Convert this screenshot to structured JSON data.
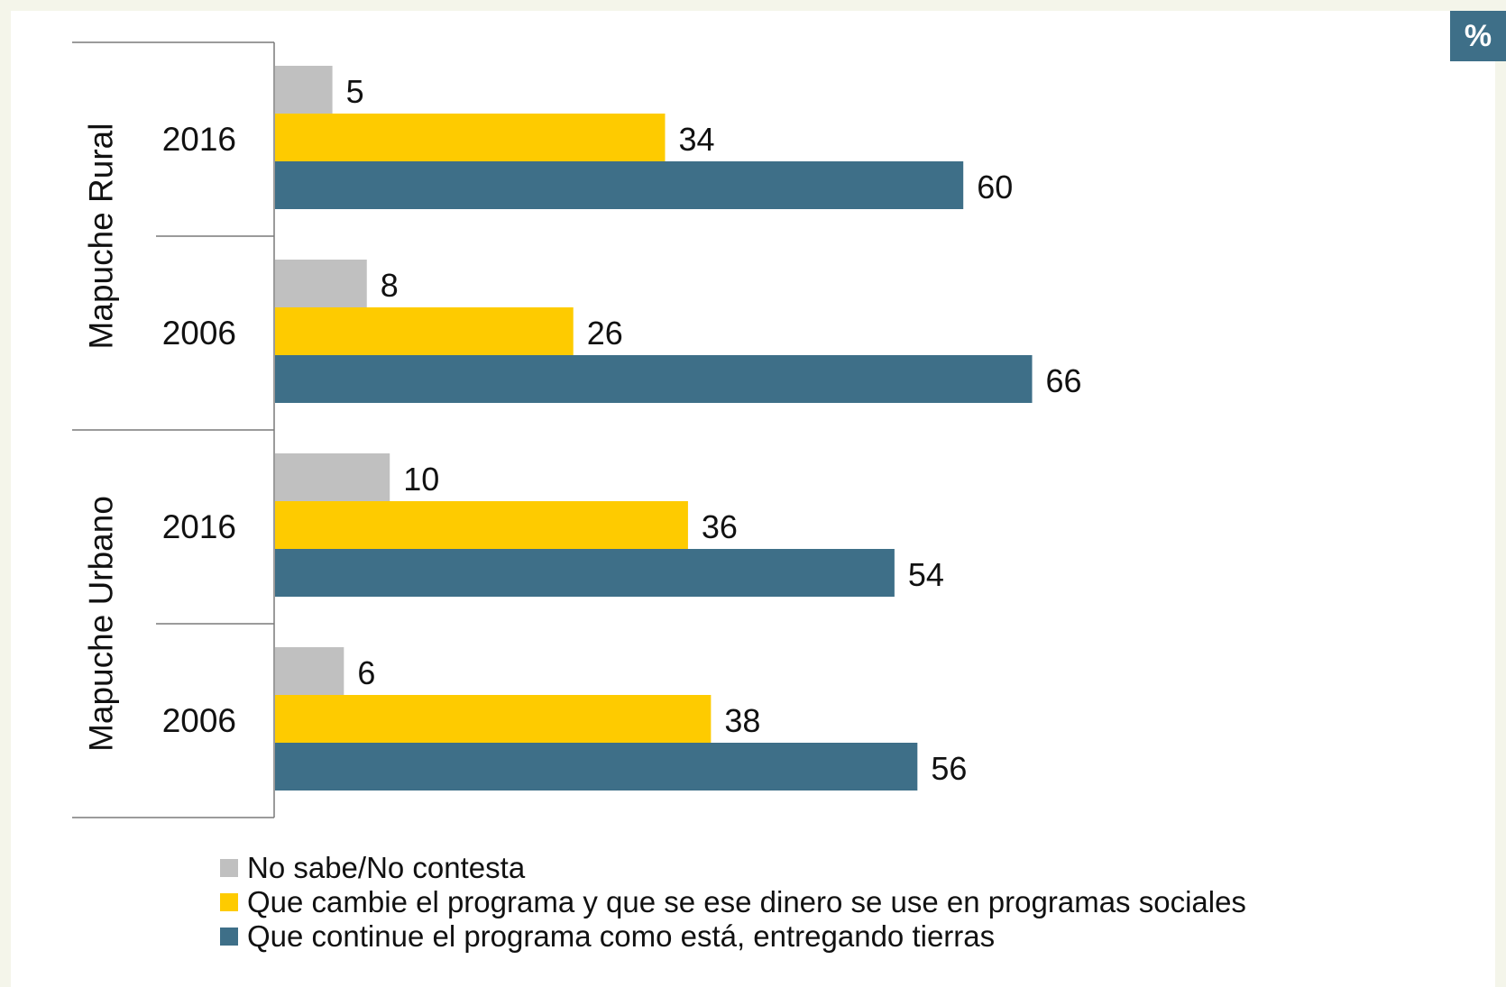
{
  "badge": "%",
  "colors": {
    "no_sabe": "#c0c0c0",
    "cambie": "#fecb00",
    "continue": "#3e6f88"
  },
  "chart_data": {
    "type": "bar",
    "orientation": "horizontal",
    "title": "",
    "xlabel": "",
    "ylabel": "",
    "xlim": [
      0,
      100
    ],
    "groups": [
      {
        "name": "Mapuche Rural",
        "categories": [
          "2016",
          "2006"
        ]
      },
      {
        "name": "Mapuche Urbano",
        "categories": [
          "2016",
          "2006"
        ]
      }
    ],
    "categories": [
      "Mapuche Rural 2016",
      "Mapuche Rural 2006",
      "Mapuche Urbano 2016",
      "Mapuche Urbano 2006"
    ],
    "series": [
      {
        "name": "No sabe/No contesta",
        "color": "#c0c0c0",
        "values": [
          5,
          8,
          10,
          6
        ]
      },
      {
        "name": "Que cambie el programa y que se ese dinero se use en programas sociales",
        "color": "#fecb00",
        "values": [
          34,
          26,
          36,
          38
        ]
      },
      {
        "name": "Que continue el programa como está, entregando tierras",
        "color": "#3e6f88",
        "values": [
          60,
          66,
          54,
          56
        ]
      }
    ],
    "legend_position": "bottom-left",
    "grid": false
  }
}
